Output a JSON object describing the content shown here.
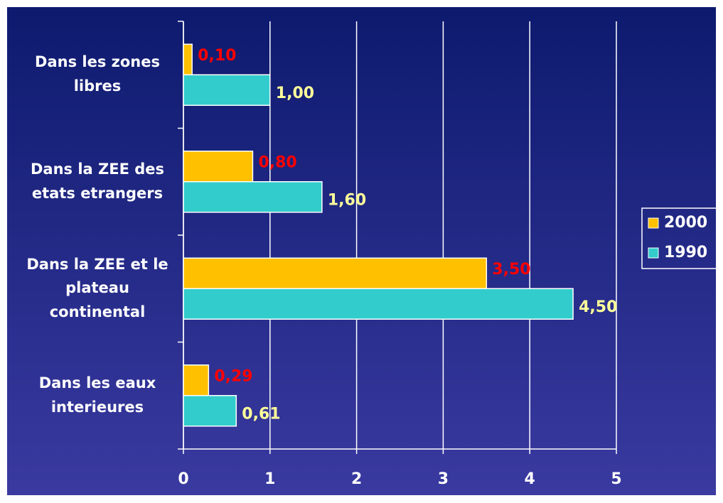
{
  "chart_data": {
    "type": "bar",
    "orientation": "horizontal",
    "categories": [
      "Dans les zones libres",
      "Dans la ZEE des etats etrangers",
      "Dans la ZEE et le plateau continental",
      "Dans les eaux interieures"
    ],
    "series": [
      {
        "name": "2000",
        "color": "#ffc000",
        "label_color": "#ff0000",
        "values": [
          0.1,
          0.8,
          3.5,
          0.29
        ],
        "value_labels": [
          "0,10",
          "0,80",
          "3,50",
          "0,29"
        ]
      },
      {
        "name": "1990",
        "color": "#33cccc",
        "label_color": "#ffff99",
        "values": [
          1.0,
          1.6,
          4.5,
          0.61
        ],
        "value_labels": [
          "1,00",
          "1,60",
          "4,50",
          "0,61"
        ]
      }
    ],
    "xlim": [
      0,
      5
    ],
    "xticks": [
      0,
      1,
      2,
      3,
      4,
      5
    ],
    "grid": true,
    "legend": "right"
  }
}
